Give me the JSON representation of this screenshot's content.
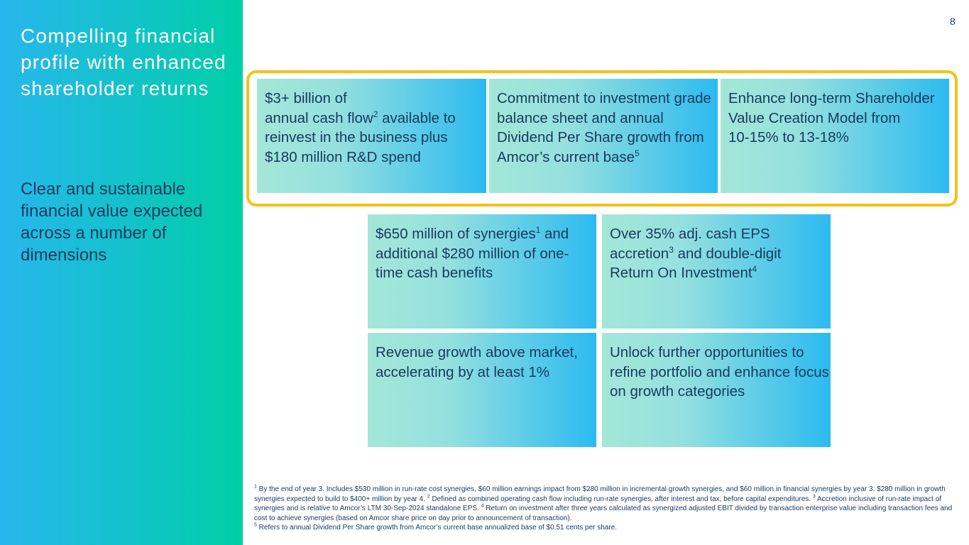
{
  "page_number": "8",
  "sidebar": {
    "title": "Compelling financial profile with enhanced shareholder returns",
    "subtitle": "Clear and sustainable financial value expected across a number of dimensions"
  },
  "colors": {
    "sidebar_gradient": [
      "#27b7ec",
      "#00cfa6"
    ],
    "card_gradient": [
      "#a4e7d8",
      "#2cbaf0"
    ],
    "highlight_border": "#f5c118",
    "text_dark": "#173a5e"
  },
  "cards": [
    {
      "line1": "$3+ billion of",
      "line2a": "annual cash flow",
      "sup1": "2",
      "line2b": " available to",
      "line3": "reinvest in the business plus",
      "line4": "$180 million R&D spend"
    },
    {
      "text": "Commitment to investment grade balance sheet and annual Dividend Per Share growth from Amcor’s current base",
      "sup": "5"
    },
    {
      "text": "Enhance long-term Shareholder Value Creation Model from",
      "line2": "10-15% to 13-18%"
    },
    {
      "text_a": "$650 million of synergies",
      "sup": "1",
      "text_b": " and additional $280 million of one-time cash benefits"
    },
    {
      "text_a": "Over 35% adj. cash EPS accretion",
      "sup1": "3",
      "text_b": " and double-digit Return On Investment",
      "sup2": "4"
    },
    {
      "text": "Revenue growth above market, accelerating by at least 1%"
    },
    {
      "text": "Unlock further opportunities to refine portfolio and enhance focus on growth categories"
    }
  ],
  "footnotes": {
    "fn1_sup": "1",
    "fn1": " By the end of year 3. Includes $530 million in run-rate cost synergies, $60 million earnings impact from $280 million in incremental growth synergies, and $60 million in financial synergies by year 3. $280 million in growth synergies expected to build to $400+ million by year 4. ",
    "fn2_sup": "2",
    "fn2": " Defined as combined operating cash flow including run-rate synergies, after interest and tax, before capital expenditures. ",
    "fn3_sup": "3",
    "fn3": " Accretion inclusive of run-rate impact of synergies and is relative to Amcor’s LTM 30-Sep-2024 standalone EPS. ",
    "fn4_sup": "4",
    "fn4": " Return on investment after three years calculated as synergized adjusted EBIT divided by transaction enterprise value including transaction fees and cost to achieve synergies (based on Amcor share price on day prior to announcement of transaction).",
    "fn5_sup": "5",
    "fn5": "  Refers to annual Dividend Per Share growth from Amcor’s current base annualized base of $0.51 cents per share."
  }
}
